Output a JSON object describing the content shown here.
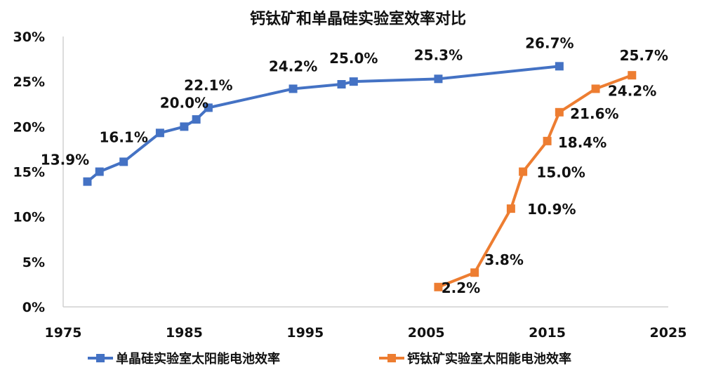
{
  "chart_data": {
    "type": "line",
    "title": "钙钛矿和单晶硅实验室效率对比",
    "xlabel": "",
    "ylabel": "",
    "xlim": [
      1975,
      2025
    ],
    "ylim": [
      0,
      30
    ],
    "x_ticks": [
      "1975",
      "1985",
      "1995",
      "2005",
      "2015",
      "2025"
    ],
    "y_ticks": [
      "0%",
      "5%",
      "10%",
      "15%",
      "20%",
      "25%",
      "30%"
    ],
    "grid": false,
    "legend": "bottom",
    "series": [
      {
        "name": "单晶硅实验室太阳能电池效率",
        "color": "#4472C4",
        "marker": "square",
        "points": [
          {
            "x": 1977,
            "y": 13.9,
            "label": "13.9%"
          },
          {
            "x": 1978,
            "y": 15.0,
            "label": ""
          },
          {
            "x": 1980,
            "y": 16.1,
            "label": "16.1%"
          },
          {
            "x": 1983,
            "y": 19.3,
            "label": ""
          },
          {
            "x": 1985,
            "y": 20.0,
            "label": "20.0%"
          },
          {
            "x": 1986,
            "y": 20.8,
            "label": ""
          },
          {
            "x": 1987,
            "y": 22.1,
            "label": "22.1%"
          },
          {
            "x": 1994,
            "y": 24.2,
            "label": "24.2%"
          },
          {
            "x": 1998,
            "y": 24.7,
            "label": ""
          },
          {
            "x": 1999,
            "y": 25.0,
            "label": "25.0%"
          },
          {
            "x": 2006,
            "y": 25.3,
            "label": "25.3%"
          },
          {
            "x": 2016,
            "y": 26.7,
            "label": "26.7%"
          }
        ]
      },
      {
        "name": "钙钛矿实验室太阳能电池效率",
        "color": "#ED7D31",
        "marker": "square",
        "points": [
          {
            "x": 2006,
            "y": 2.2,
            "label": "2.2%"
          },
          {
            "x": 2009,
            "y": 3.8,
            "label": "3.8%"
          },
          {
            "x": 2012,
            "y": 10.9,
            "label": "10.9%"
          },
          {
            "x": 2013,
            "y": 15.0,
            "label": "15.0%"
          },
          {
            "x": 2015,
            "y": 18.4,
            "label": "18.4%"
          },
          {
            "x": 2016,
            "y": 21.6,
            "label": "21.6%"
          },
          {
            "x": 2019,
            "y": 24.2,
            "label": "24.2%"
          },
          {
            "x": 2022,
            "y": 25.7,
            "label": "25.7%"
          }
        ]
      }
    ]
  }
}
